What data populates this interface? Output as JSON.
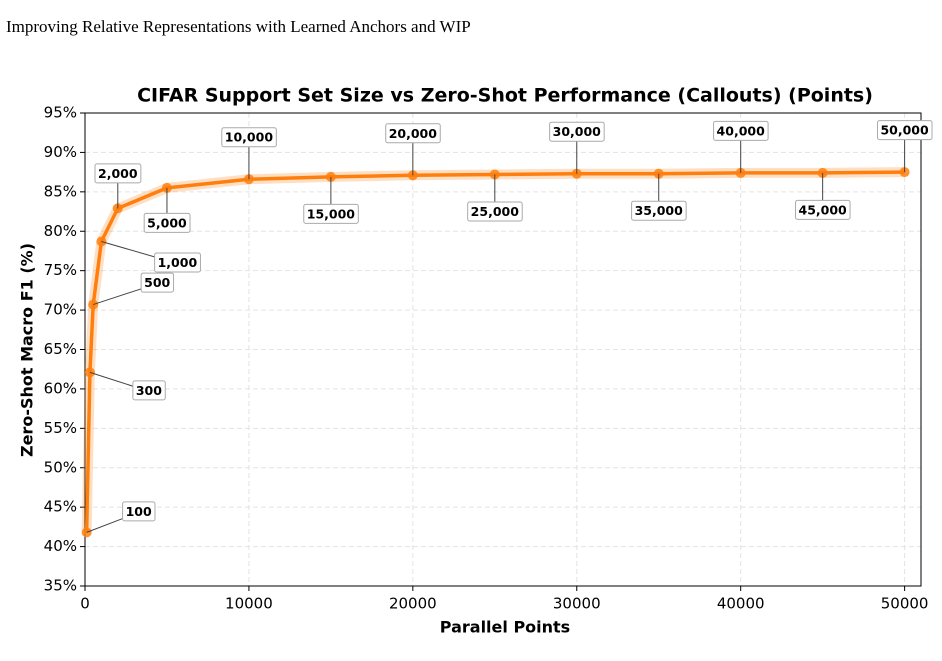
{
  "header": {
    "title": "Improving Relative Representations with Learned Anchors and WIP"
  },
  "chart_data": {
    "type": "line",
    "title": "CIFAR Support Set Size vs Zero-Shot Performance (Callouts) (Points)",
    "x_label": "Parallel Points",
    "y_label": "Zero-Shot Macro F1 (%)",
    "x": [
      100,
      300,
      500,
      1000,
      2000,
      5000,
      10000,
      15000,
      20000,
      25000,
      30000,
      35000,
      40000,
      45000,
      50000
    ],
    "callouts": [
      "100",
      "300",
      "500",
      "1,000",
      "2,000",
      "5,000",
      "10,000",
      "15,000",
      "20,000",
      "25,000",
      "30,000",
      "35,000",
      "40,000",
      "45,000",
      "50,000"
    ],
    "series": [
      {
        "color": "#ff7f0e",
        "values": [
          41.8,
          62.1,
          70.7,
          78.7,
          82.9,
          85.5,
          86.6,
          86.9,
          87.1,
          87.2,
          87.3,
          87.3,
          87.4,
          87.4,
          87.5
        ]
      }
    ],
    "xlim": [
      0,
      51000
    ],
    "xticks": [
      0,
      10000,
      20000,
      30000,
      40000,
      50000
    ],
    "ylim": [
      35,
      95
    ],
    "yticks": [
      {
        "value": 35,
        "label": "35%"
      },
      {
        "value": 40,
        "label": "40%"
      },
      {
        "value": 45,
        "label": "45%"
      },
      {
        "value": 50,
        "label": "50%"
      },
      {
        "value": 55,
        "label": "55%"
      },
      {
        "value": 60,
        "label": "60%"
      },
      {
        "value": 65,
        "label": "65%"
      },
      {
        "value": 70,
        "label": "70%"
      },
      {
        "value": 75,
        "label": "75%"
      },
      {
        "value": 80,
        "label": "80%"
      },
      {
        "value": 85,
        "label": "85%"
      },
      {
        "value": 90,
        "label": "90%"
      },
      {
        "value": 95,
        "label": "95%"
      }
    ],
    "grid": true
  }
}
